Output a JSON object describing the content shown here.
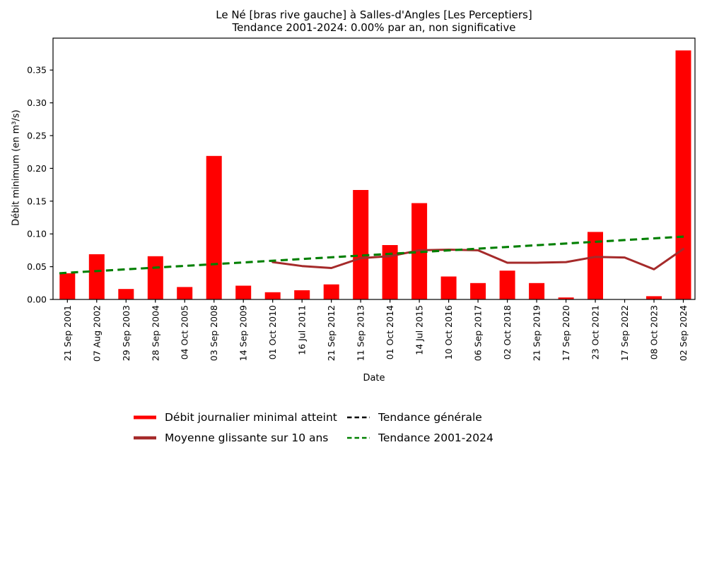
{
  "title": {
    "line1": "Le Né [bras rive gauche] à Salles-d'Angles [Les Perceptiers]",
    "line2": "Tendance 2001-2024: 0.00% par an, non significative"
  },
  "axes": {
    "x_label": "Date",
    "y_label": "Débit minimum (en m³/s)"
  },
  "legend": {
    "items": [
      {
        "label": "Débit journalier minimal atteint",
        "color": "#ff0000",
        "style": "solid-thick"
      },
      {
        "label": "Moyenne glissante sur 10 ans",
        "color": "#a52a2a",
        "style": "solid"
      },
      {
        "label": "Tendance générale",
        "color": "#000000",
        "style": "dashed"
      },
      {
        "label": "Tendance 2001-2024",
        "color": "#008000",
        "style": "dashed"
      }
    ]
  },
  "chart_data": {
    "type": "bar",
    "title": "Le Né [bras rive gauche] à Salles-d'Angles [Les Perceptiers]",
    "subtitle": "Tendance 2001-2024: 0.00% par an, non significative",
    "xlabel": "Date",
    "ylabel": "Débit minimum (en m³/s)",
    "ylim": [
      0,
      0.399
    ],
    "y_tick_step": 0.05,
    "y_tick_max": 0.35,
    "grid": false,
    "legend_position": "below",
    "categories": [
      "21 Sep 2001",
      "07 Aug 2002",
      "29 Sep 2003",
      "28 Sep 2004",
      "04 Oct 2005",
      "03 Sep 2008",
      "14 Sep 2009",
      "01 Oct 2010",
      "16 Jul 2011",
      "21 Sep 2012",
      "11 Sep 2013",
      "01 Oct 2014",
      "14 Jul 2015",
      "10 Oct 2016",
      "06 Sep 2017",
      "02 Oct 2018",
      "21 Sep 2019",
      "17 Sep 2020",
      "23 Oct 2021",
      "17 Sep 2022",
      "08 Oct 2023",
      "02 Sep 2024"
    ],
    "series": [
      {
        "name": "Débit journalier minimal atteint",
        "type": "bar",
        "color": "#ff0000",
        "values": [
          0.04,
          0.069,
          0.016,
          0.066,
          0.019,
          0.219,
          0.021,
          0.011,
          0.014,
          0.023,
          0.167,
          0.083,
          0.147,
          0.035,
          0.025,
          0.044,
          0.025,
          0.003,
          0.103,
          0.0,
          0.005,
          0.38
        ]
      },
      {
        "name": "Moyenne glissante sur 10 ans",
        "type": "line",
        "color": "#a52a2a",
        "start_index": 7,
        "values": [
          0.057,
          0.051,
          0.048,
          0.063,
          0.066,
          0.075,
          0.076,
          0.075,
          0.056,
          0.056,
          0.057,
          0.065,
          0.064,
          0.046,
          0.077
        ]
      },
      {
        "name": "Tendance générale",
        "type": "trend",
        "color": "#000000",
        "dashed": true,
        "start_value": 0.04,
        "end_value": 0.096
      },
      {
        "name": "Tendance 2001-2024",
        "type": "trend",
        "color": "#008000",
        "dashed": true,
        "start_value": 0.04,
        "end_value": 0.096
      }
    ]
  }
}
